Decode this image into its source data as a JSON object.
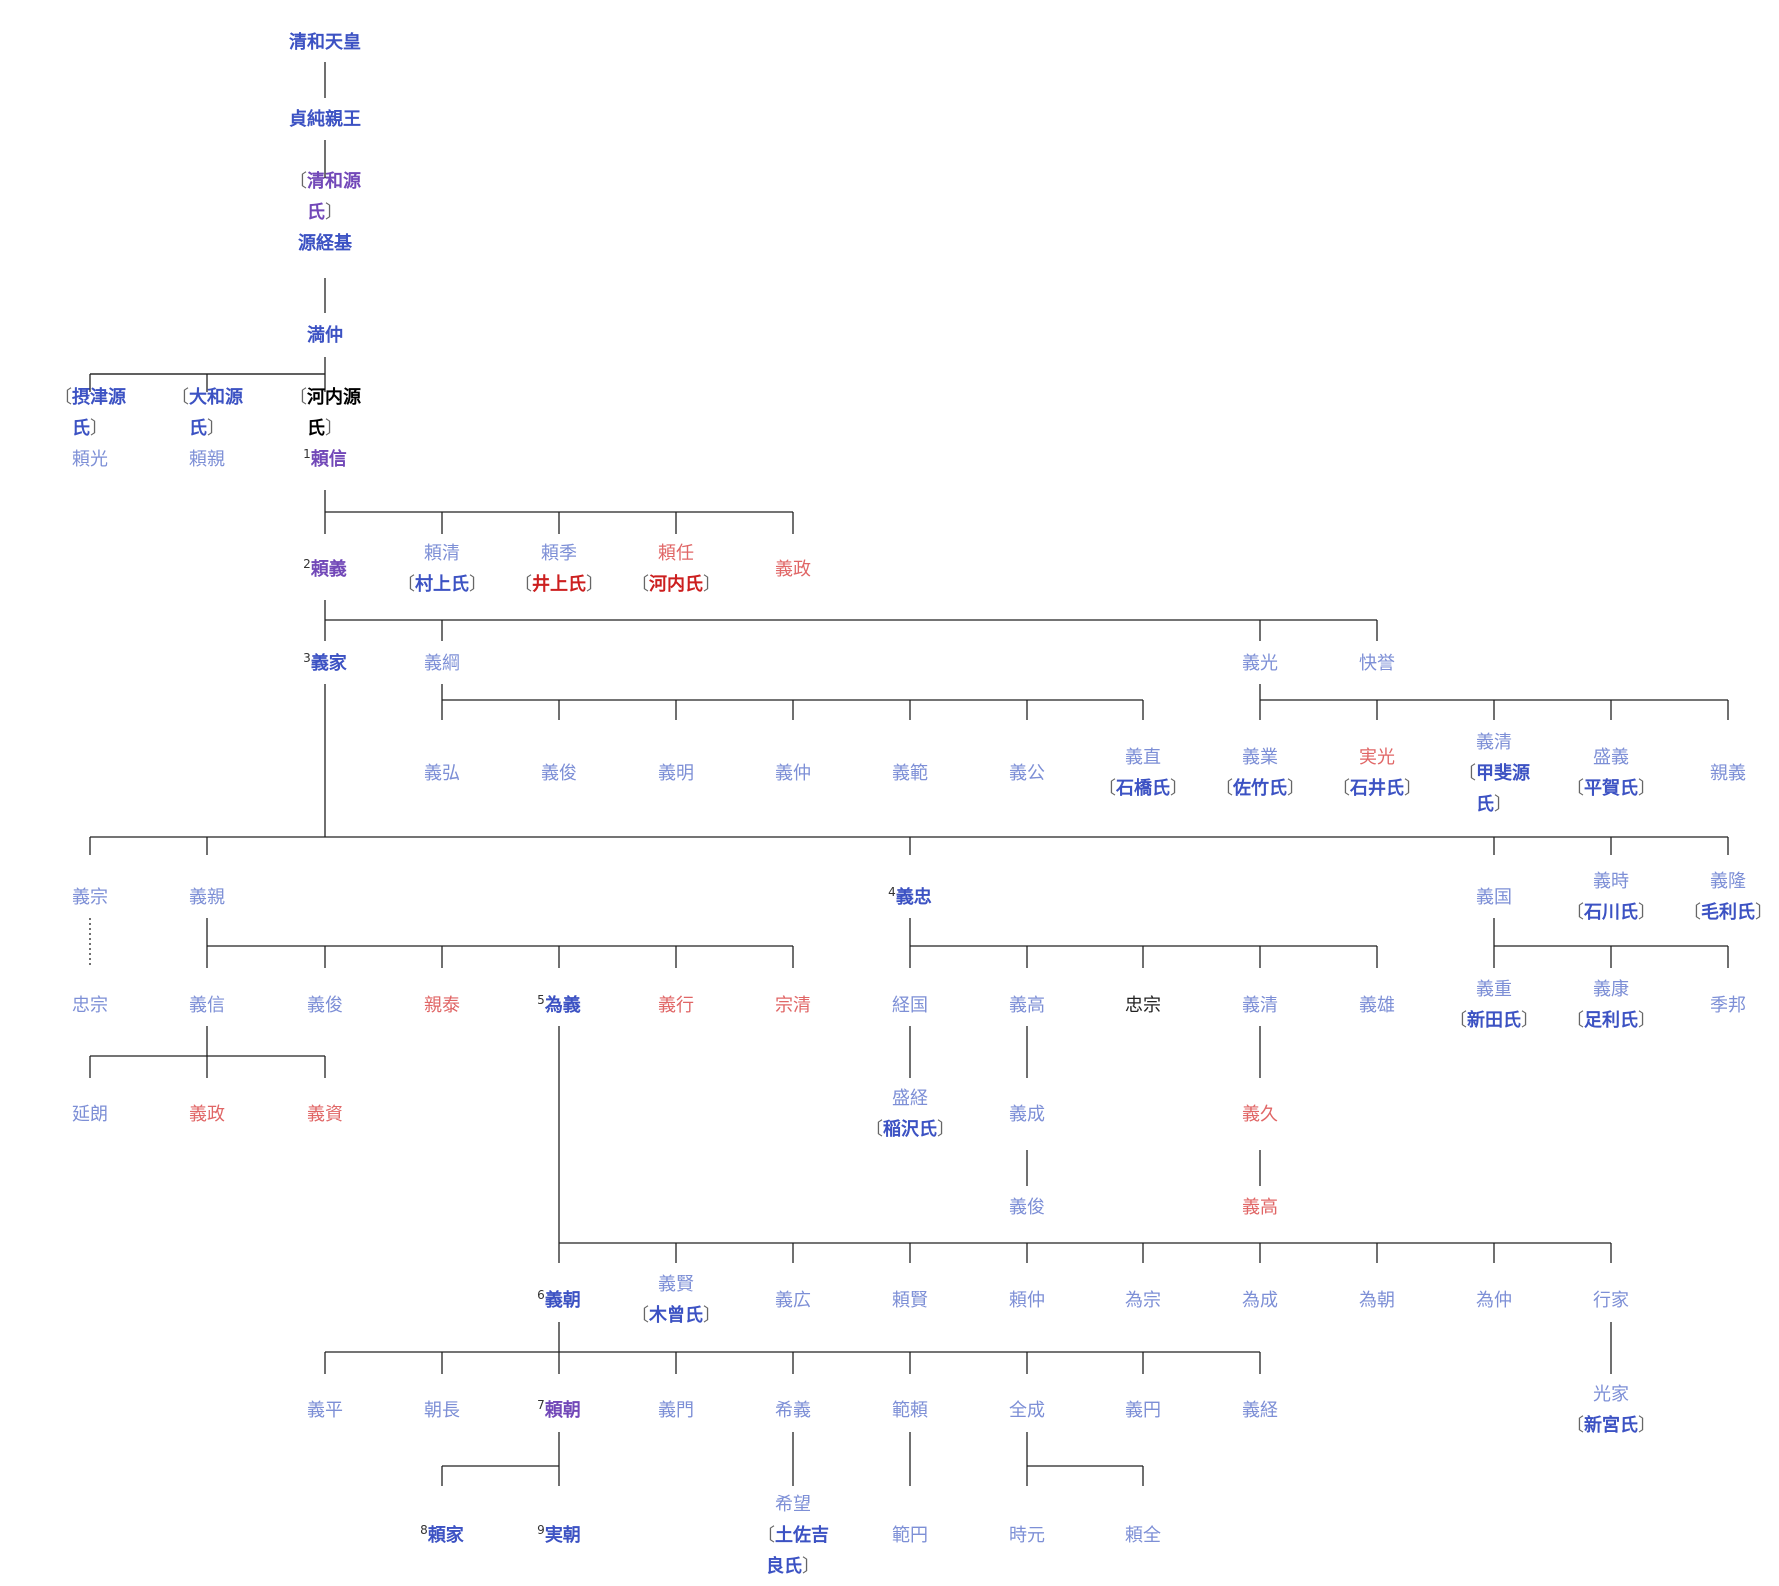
{
  "caption": "",
  "nodes": [
    {
      "id": "seiwa",
      "name": "清和天皇",
      "color": "B"
    },
    {
      "id": "sadazumi",
      "name": "貞純親王",
      "color": "B"
    },
    {
      "id": "tsunemoto",
      "name": "源経基",
      "color": "B",
      "clan_top": "清和源氏",
      "clan_color": "p"
    },
    {
      "id": "mitsunaka",
      "name": "満仲",
      "color": "B"
    },
    {
      "id": "yorimitsu",
      "name": "頼光",
      "color": "b",
      "clan_top": "摂津源氏",
      "clan_color": "b"
    },
    {
      "id": "yorichika",
      "name": "頼親",
      "color": "b",
      "clan_top": "大和源氏",
      "clan_color": "b"
    },
    {
      "id": "yorinobu",
      "name": "頼信",
      "color": "P",
      "num": "1",
      "clan_top": "河内源氏",
      "clan_color": "k"
    },
    {
      "id": "yoriyoshi",
      "name": "頼義",
      "color": "P",
      "num": "2"
    },
    {
      "id": "yorikiyo",
      "name": "頼清",
      "color": "b",
      "clan": "村上氏",
      "clan_color": "b"
    },
    {
      "id": "yorisue",
      "name": "頼季",
      "color": "b",
      "clan": "井上氏",
      "clan_color": "r"
    },
    {
      "id": "yorito",
      "name": "頼任",
      "color": "r",
      "clan": "河内氏",
      "clan_color": "r"
    },
    {
      "id": "yoshimasa1",
      "name": "義政",
      "color": "r"
    },
    {
      "id": "yoshiie",
      "name": "義家",
      "color": "B",
      "num": "3"
    },
    {
      "id": "yoshitsuna",
      "name": "義綱",
      "color": "b"
    },
    {
      "id": "yoshimitsu",
      "name": "義光",
      "color": "b"
    },
    {
      "id": "kaiyo",
      "name": "快誉",
      "color": "b"
    },
    {
      "id": "yoshihiro",
      "name": "義弘",
      "color": "b"
    },
    {
      "id": "yoshitoshi1",
      "name": "義俊",
      "color": "b"
    },
    {
      "id": "yoshiaki",
      "name": "義明",
      "color": "b"
    },
    {
      "id": "yoshinaka1",
      "name": "義仲",
      "color": "b"
    },
    {
      "id": "yoshinori",
      "name": "義範",
      "color": "b"
    },
    {
      "id": "yoshikimi",
      "name": "義公",
      "color": "b"
    },
    {
      "id": "yoshinao",
      "name": "義直",
      "color": "b",
      "clan": "石橋氏",
      "clan_color": "b"
    },
    {
      "id": "yoshinari_s",
      "name": "義業",
      "color": "b",
      "clan": "佐竹氏",
      "clan_color": "b"
    },
    {
      "id": "sanemitsu",
      "name": "実光",
      "color": "r",
      "clan": "石井氏",
      "clan_color": "b"
    },
    {
      "id": "yoshikiyo1",
      "name": "義清",
      "color": "b",
      "clan": "甲斐源氏",
      "clan_color": "b"
    },
    {
      "id": "moriyoshi",
      "name": "盛義",
      "color": "b",
      "clan": "平賀氏",
      "clan_color": "b"
    },
    {
      "id": "chikayoshi",
      "name": "親義",
      "color": "b"
    },
    {
      "id": "yoshimune",
      "name": "義宗",
      "color": "b"
    },
    {
      "id": "yoshichika",
      "name": "義親",
      "color": "b"
    },
    {
      "id": "yoshitada",
      "name": "義忠",
      "color": "B",
      "num": "4"
    },
    {
      "id": "yoshikuni",
      "name": "義国",
      "color": "b"
    },
    {
      "id": "yoshitoki",
      "name": "義時",
      "color": "b",
      "clan": "石川氏",
      "clan_color": "b"
    },
    {
      "id": "yoshitaka_m",
      "name": "義隆",
      "color": "b",
      "clan": "毛利氏",
      "clan_color": "b"
    },
    {
      "id": "tadamune1",
      "name": "忠宗",
      "color": "b"
    },
    {
      "id": "yoshinobu",
      "name": "義信",
      "color": "b"
    },
    {
      "id": "yoshitoshi2",
      "name": "義俊",
      "color": "b"
    },
    {
      "id": "chikayasu",
      "name": "親泰",
      "color": "r"
    },
    {
      "id": "tameyoshi",
      "name": "為義",
      "color": "B",
      "num": "5"
    },
    {
      "id": "yoshiyuki",
      "name": "義行",
      "color": "r"
    },
    {
      "id": "munekiyo",
      "name": "宗清",
      "color": "r"
    },
    {
      "id": "tsunekuni",
      "name": "経国",
      "color": "b"
    },
    {
      "id": "yoshitaka1",
      "name": "義高",
      "color": "b"
    },
    {
      "id": "tadamune2",
      "name": "忠宗",
      "color": "k"
    },
    {
      "id": "yoshikiyo2",
      "name": "義清",
      "color": "b"
    },
    {
      "id": "yoshio",
      "name": "義雄",
      "color": "b"
    },
    {
      "id": "yoshishige",
      "name": "義重",
      "color": "b",
      "clan": "新田氏",
      "clan_color": "b"
    },
    {
      "id": "yoshiyasu",
      "name": "義康",
      "color": "b",
      "clan": "足利氏",
      "clan_color": "b"
    },
    {
      "id": "suekuni",
      "name": "季邦",
      "color": "b"
    },
    {
      "id": "nobuaki",
      "name": "延朗",
      "color": "b"
    },
    {
      "id": "yoshimasa2",
      "name": "義政",
      "color": "r"
    },
    {
      "id": "yoshisuke",
      "name": "義資",
      "color": "r"
    },
    {
      "id": "moritsune",
      "name": "盛経",
      "color": "b",
      "clan": "稲沢氏",
      "clan_color": "b"
    },
    {
      "id": "yoshinari1",
      "name": "義成",
      "color": "b"
    },
    {
      "id": "yoshihisa",
      "name": "義久",
      "color": "r"
    },
    {
      "id": "yoshitoshi3",
      "name": "義俊",
      "color": "b"
    },
    {
      "id": "yoshitaka2",
      "name": "義高",
      "color": "r"
    },
    {
      "id": "yoshitomo",
      "name": "義朝",
      "color": "B",
      "num": "6"
    },
    {
      "id": "yoshikata",
      "name": "義賢",
      "color": "b",
      "clan": "木曾氏",
      "clan_color": "b"
    },
    {
      "id": "yoshihiro2",
      "name": "義広",
      "color": "b"
    },
    {
      "id": "yorikata",
      "name": "頼賢",
      "color": "b"
    },
    {
      "id": "yorinaka",
      "name": "頼仲",
      "color": "b"
    },
    {
      "id": "tamemune",
      "name": "為宗",
      "color": "b"
    },
    {
      "id": "tamenari",
      "name": "為成",
      "color": "b"
    },
    {
      "id": "tametomo",
      "name": "為朝",
      "color": "b"
    },
    {
      "id": "tamenaka",
      "name": "為仲",
      "color": "b"
    },
    {
      "id": "yukiie",
      "name": "行家",
      "color": "b"
    },
    {
      "id": "yoshihira",
      "name": "義平",
      "color": "b"
    },
    {
      "id": "tomonaga",
      "name": "朝長",
      "color": "b"
    },
    {
      "id": "yoritomo",
      "name": "頼朝",
      "color": "P",
      "num": "7"
    },
    {
      "id": "gimon",
      "name": "義門",
      "color": "b"
    },
    {
      "id": "mareyoshi",
      "name": "希義",
      "color": "b"
    },
    {
      "id": "noriyori",
      "name": "範頼",
      "color": "b"
    },
    {
      "id": "zenjo",
      "name": "全成",
      "color": "b"
    },
    {
      "id": "gien",
      "name": "義円",
      "color": "b"
    },
    {
      "id": "yoshitsune",
      "name": "義経",
      "color": "b"
    },
    {
      "id": "mitsuie",
      "name": "光家",
      "color": "b",
      "clan": "新宮氏",
      "clan_color": "b"
    },
    {
      "id": "yoriie",
      "name": "頼家",
      "color": "B",
      "num": "8"
    },
    {
      "id": "sanetomo",
      "name": "実朝",
      "color": "B",
      "num": "9"
    },
    {
      "id": "kibo",
      "name": "希望",
      "color": "b",
      "clan": "土佐吉良氏",
      "clan_color": "b"
    },
    {
      "id": "hanen",
      "name": "範円",
      "color": "b"
    },
    {
      "id": "tokimoto",
      "name": "時元",
      "color": "b"
    },
    {
      "id": "raizen",
      "name": "頼全",
      "color": "b"
    }
  ]
}
